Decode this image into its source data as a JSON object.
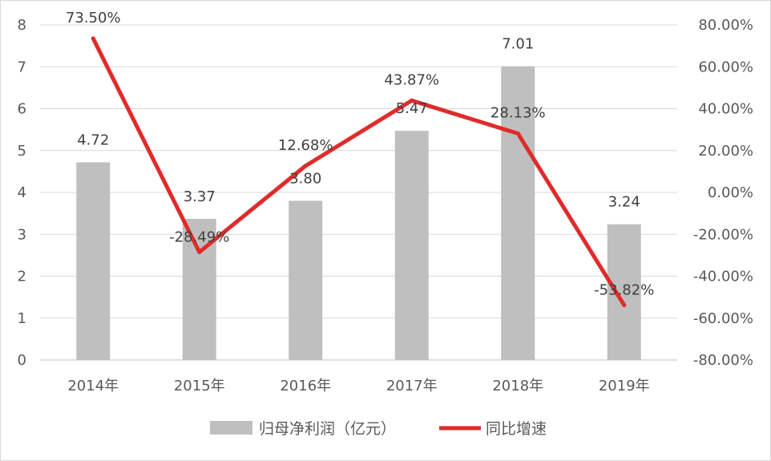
{
  "chart_data": {
    "type": "bar",
    "categories": [
      "2014年",
      "2015年",
      "2016年",
      "2017年",
      "2018年",
      "2019年"
    ],
    "series": [
      {
        "name": "归母净利润（亿元）",
        "type": "bar",
        "axis": "left",
        "values": [
          4.72,
          3.37,
          3.8,
          5.47,
          7.01,
          3.24
        ],
        "labels": [
          "4.72",
          "3.37",
          "3.80",
          "5.47",
          "7.01",
          "3.24"
        ]
      },
      {
        "name": "同比增速",
        "type": "line",
        "axis": "right",
        "values": [
          73.5,
          -28.49,
          12.68,
          43.87,
          28.13,
          -53.82
        ],
        "labels": [
          "73.50%",
          "-28.49%",
          "12.68%",
          "43.87%",
          "28.13%",
          "-53.82%"
        ]
      }
    ],
    "y_left": {
      "ylim": [
        0,
        8
      ],
      "ticks": [
        0,
        1,
        2,
        3,
        4,
        5,
        6,
        7,
        8
      ]
    },
    "y_right": {
      "ylim": [
        -80,
        80
      ],
      "ticks": [
        80,
        60,
        40,
        20,
        0,
        -20,
        -40,
        -60,
        -80
      ],
      "tick_labels": [
        "80.00%",
        "60.00%",
        "40.00%",
        "20.00%",
        "0.00%",
        "-20.00%",
        "-40.00%",
        "-60.00%",
        "-80.00%"
      ]
    },
    "grid": "horizontal",
    "legend_position": "bottom",
    "colors": {
      "bar": "#bfbfbf",
      "line": "#e02b2b",
      "grid": "#d9d9d9",
      "text": "#595959"
    }
  }
}
